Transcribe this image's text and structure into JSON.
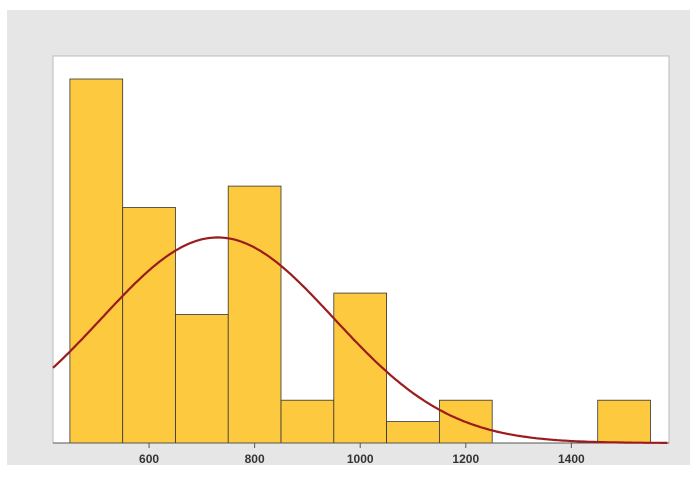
{
  "chart_data": {
    "type": "bar",
    "title": "",
    "xlabel": "",
    "ylabel": "",
    "bin_width": 100,
    "bins": [
      {
        "x0": 450,
        "x1": 550,
        "count": 17
      },
      {
        "x0": 550,
        "x1": 650,
        "count": 11
      },
      {
        "x0": 650,
        "x1": 750,
        "count": 6
      },
      {
        "x0": 750,
        "x1": 850,
        "count": 12
      },
      {
        "x0": 850,
        "x1": 950,
        "count": 2
      },
      {
        "x0": 950,
        "x1": 1050,
        "count": 7
      },
      {
        "x0": 1050,
        "x1": 1150,
        "count": 1
      },
      {
        "x0": 1150,
        "x1": 1250,
        "count": 2
      },
      {
        "x0": 1250,
        "x1": 1350,
        "count": 0
      },
      {
        "x0": 1350,
        "x1": 1450,
        "count": 0
      },
      {
        "x0": 1450,
        "x1": 1550,
        "count": 2
      }
    ],
    "xlim": [
      418,
      1585
    ],
    "ylim": [
      0,
      17
    ],
    "xticks": [
      "600",
      "800",
      "1000",
      "1200",
      "1400"
    ],
    "normal_fit": {
      "mean": 730,
      "sd": 220,
      "peak_count": 9.6
    },
    "grid": false,
    "colors": {
      "bars": "#fdc93f",
      "bar_edge": "#333333",
      "fit_line": "#9b1c1c",
      "frame": "#e6e6e6",
      "plot_bg": "#ffffff"
    }
  }
}
